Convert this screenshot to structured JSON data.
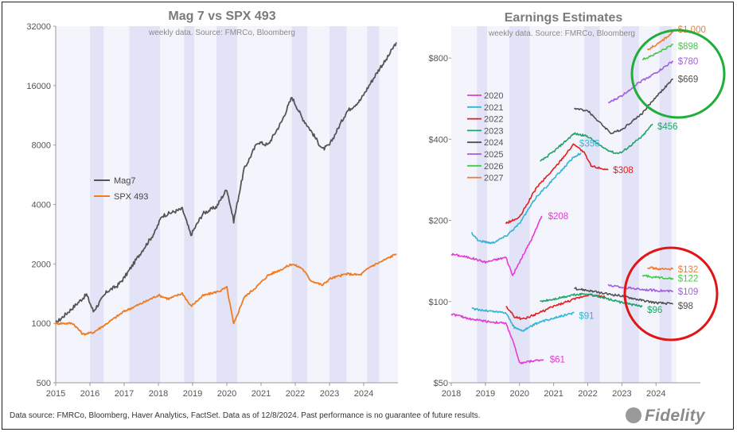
{
  "footnote": "Data source: FMRCo, Bloomberg, Haver Analytics, FactSet. Data as of 12/8/2024. Past performance is no guarantee of future results.",
  "logo_text": "Fidelity",
  "colors": {
    "mag7": "#555555",
    "spx493": "#ef7b22",
    "y2020": "#e53ad4",
    "y2021": "#2fb6d3",
    "y2022": "#e02020",
    "y2023": "#22a36a",
    "y2024": "#505050",
    "y2025": "#a35ee0",
    "y2026": "#45c94a",
    "y2027": "#f07a2e",
    "green_circle": "#1fae3a",
    "red_circle": "#e01515",
    "recession_band": "#e3e3f7"
  },
  "chart_data": [
    {
      "type": "line",
      "title": "Mag 7 vs SPX 493",
      "subtitle": "weekly data. Source: FMRCo, Bloomberg",
      "y_scale": "log",
      "ylim": [
        500,
        32000
      ],
      "y_ticks": [
        "32000",
        "16000",
        "8000",
        "4000",
        "2000",
        "1000",
        "500"
      ],
      "x_ticks": [
        "2015",
        "2016",
        "2017",
        "2018",
        "2019",
        "2020",
        "2021",
        "2022",
        "2023",
        "2024"
      ],
      "legend_position": "middle-left",
      "series": [
        {
          "name": "Mag7",
          "points": [
            [
              2015.0,
              1000
            ],
            [
              2015.5,
              1200
            ],
            [
              2015.9,
              1400
            ],
            [
              2016.1,
              1150
            ],
            [
              2016.5,
              1450
            ],
            [
              2016.8,
              1550
            ],
            [
              2017.0,
              1700
            ],
            [
              2017.5,
              2300
            ],
            [
              2017.9,
              2900
            ],
            [
              2018.1,
              3500
            ],
            [
              2018.7,
              3800
            ],
            [
              2018.95,
              2800
            ],
            [
              2019.3,
              3600
            ],
            [
              2019.7,
              3900
            ],
            [
              2020.0,
              4800
            ],
            [
              2020.2,
              3300
            ],
            [
              2020.5,
              6000
            ],
            [
              2020.9,
              8300
            ],
            [
              2021.2,
              8000
            ],
            [
              2021.6,
              10500
            ],
            [
              2021.9,
              14000
            ],
            [
              2022.2,
              11000
            ],
            [
              2022.45,
              9500
            ],
            [
              2022.8,
              7600
            ],
            [
              2023.0,
              8000
            ],
            [
              2023.5,
              11800
            ],
            [
              2023.9,
              13500
            ],
            [
              2024.2,
              16500
            ],
            [
              2024.5,
              20000
            ],
            [
              2024.65,
              21500
            ],
            [
              2024.95,
              26500
            ]
          ]
        },
        {
          "name": "SPX 493",
          "points": [
            [
              2015.0,
              1000
            ],
            [
              2015.5,
              1000
            ],
            [
              2015.8,
              880
            ],
            [
              2016.1,
              900
            ],
            [
              2016.5,
              1000
            ],
            [
              2017.0,
              1150
            ],
            [
              2017.5,
              1260
            ],
            [
              2018.0,
              1390
            ],
            [
              2018.3,
              1330
            ],
            [
              2018.7,
              1420
            ],
            [
              2018.95,
              1220
            ],
            [
              2019.3,
              1380
            ],
            [
              2019.8,
              1460
            ],
            [
              2020.0,
              1520
            ],
            [
              2020.2,
              990
            ],
            [
              2020.5,
              1350
            ],
            [
              2020.9,
              1550
            ],
            [
              2021.2,
              1750
            ],
            [
              2021.6,
              1880
            ],
            [
              2021.9,
              2000
            ],
            [
              2022.2,
              1900
            ],
            [
              2022.45,
              1650
            ],
            [
              2022.8,
              1560
            ],
            [
              2023.0,
              1680
            ],
            [
              2023.5,
              1780
            ],
            [
              2023.9,
              1760
            ],
            [
              2024.2,
              1940
            ],
            [
              2024.5,
              2050
            ],
            [
              2024.95,
              2250
            ]
          ]
        }
      ]
    },
    {
      "type": "line",
      "title": "Earnings Estimates",
      "subtitle": "weekly data. Source: FMRCo, Bloomberg",
      "y_scale": "log",
      "ylim": [
        50,
        1050
      ],
      "y_ticks": [
        "$800",
        "$400",
        "$200",
        "$100",
        "$50"
      ],
      "x_ticks": [
        "2018",
        "2019",
        "2020",
        "2021",
        "2022",
        "2023",
        "2024"
      ],
      "legend_position": "upper-left",
      "legend": [
        "2020",
        "2021",
        "2022",
        "2023",
        "2024",
        "2025",
        "2026",
        "2027"
      ],
      "series": [
        {
          "name": "2020",
          "kind": "mag7",
          "end_label": "$208",
          "points": [
            [
              2018.0,
              150
            ],
            [
              2018.6,
              145
            ],
            [
              2019.0,
              140
            ],
            [
              2019.6,
              146
            ],
            [
              2019.8,
              125
            ],
            [
              2020.0,
              140
            ],
            [
              2020.4,
              175
            ],
            [
              2020.65,
              208
            ]
          ]
        },
        {
          "name": "2021",
          "kind": "mag7",
          "end_label": "$356",
          "points": [
            [
              2018.6,
              180
            ],
            [
              2018.8,
              168
            ],
            [
              2019.2,
              165
            ],
            [
              2019.6,
              175
            ],
            [
              2020.0,
              195
            ],
            [
              2020.5,
              245
            ],
            [
              2021.0,
              285
            ],
            [
              2021.6,
              345
            ],
            [
              2021.8,
              356
            ]
          ]
        },
        {
          "name": "2022",
          "kind": "mag7",
          "end_label": "$308",
          "points": [
            [
              2019.6,
              195
            ],
            [
              2020.0,
              205
            ],
            [
              2020.5,
              265
            ],
            [
              2021.0,
              310
            ],
            [
              2021.6,
              385
            ],
            [
              2021.9,
              355
            ],
            [
              2022.1,
              318
            ],
            [
              2022.6,
              308
            ]
          ]
        },
        {
          "name": "2023",
          "kind": "mag7",
          "end_label": "$456",
          "points": [
            [
              2020.6,
              330
            ],
            [
              2021.0,
              360
            ],
            [
              2021.6,
              420
            ],
            [
              2022.0,
              410
            ],
            [
              2022.4,
              375
            ],
            [
              2022.8,
              355
            ],
            [
              2023.0,
              358
            ],
            [
              2023.6,
              410
            ],
            [
              2023.9,
              456
            ]
          ]
        },
        {
          "name": "2024",
          "kind": "mag7",
          "end_label": "$669",
          "points": [
            [
              2021.6,
              520
            ],
            [
              2022.0,
              510
            ],
            [
              2022.4,
              455
            ],
            [
              2022.7,
              420
            ],
            [
              2023.0,
              435
            ],
            [
              2023.6,
              500
            ],
            [
              2024.0,
              575
            ],
            [
              2024.5,
              669
            ]
          ]
        },
        {
          "name": "2025",
          "kind": "mag7",
          "end_label": "$780",
          "points": [
            [
              2022.6,
              545
            ],
            [
              2023.0,
              580
            ],
            [
              2023.5,
              650
            ],
            [
              2024.0,
              705
            ],
            [
              2024.5,
              780
            ]
          ]
        },
        {
          "name": "2026",
          "kind": "mag7",
          "end_label": "$898",
          "points": [
            [
              2023.6,
              790
            ],
            [
              2024.0,
              830
            ],
            [
              2024.5,
              898
            ]
          ]
        },
        {
          "name": "2027",
          "kind": "mag7",
          "end_label": "$1,000",
          "points": [
            [
              2023.75,
              860
            ],
            [
              2024.1,
              910
            ],
            [
              2024.5,
              1000
            ]
          ]
        },
        {
          "name": "2020",
          "kind": "spx493",
          "end_label": "$61",
          "points": [
            [
              2018.0,
              90
            ],
            [
              2018.6,
              86
            ],
            [
              2019.2,
              84
            ],
            [
              2019.6,
              83
            ],
            [
              2019.8,
              72
            ],
            [
              2020.0,
              59
            ],
            [
              2020.3,
              60
            ],
            [
              2020.7,
              61
            ]
          ]
        },
        {
          "name": "2021",
          "kind": "spx493",
          "end_label": "$91",
          "points": [
            [
              2018.6,
              94
            ],
            [
              2019.2,
              92
            ],
            [
              2019.6,
              91
            ],
            [
              2019.85,
              80
            ],
            [
              2020.1,
              78
            ],
            [
              2020.5,
              83
            ],
            [
              2021.0,
              87
            ],
            [
              2021.6,
              91
            ]
          ]
        },
        {
          "name": "2022",
          "kind": "spx493",
          "end_label": "",
          "points": [
            [
              2019.6,
              96
            ],
            [
              2019.85,
              88
            ],
            [
              2020.1,
              86
            ],
            [
              2020.5,
              90
            ],
            [
              2021.0,
              96
            ],
            [
              2021.5,
              101
            ],
            [
              2022.0,
              106
            ],
            [
              2022.5,
              104
            ]
          ]
        },
        {
          "name": "2023",
          "kind": "spx493",
          "end_label": "$96",
          "points": [
            [
              2020.6,
              100
            ],
            [
              2021.0,
              102
            ],
            [
              2021.6,
              106
            ],
            [
              2022.0,
              107
            ],
            [
              2022.5,
              103
            ],
            [
              2023.0,
              99
            ],
            [
              2023.6,
              96
            ]
          ]
        },
        {
          "name": "2024",
          "kind": "spx493",
          "end_label": "$98",
          "points": [
            [
              2021.6,
              112
            ],
            [
              2022.0,
              110
            ],
            [
              2022.5,
              107
            ],
            [
              2023.0,
              105
            ],
            [
              2023.6,
              101
            ],
            [
              2024.0,
              99
            ],
            [
              2024.5,
              98
            ]
          ]
        },
        {
          "name": "2025",
          "kind": "spx493",
          "end_label": "$109",
          "points": [
            [
              2022.6,
              115
            ],
            [
              2023.0,
              113
            ],
            [
              2023.6,
              111
            ],
            [
              2024.0,
              110
            ],
            [
              2024.5,
              109
            ]
          ]
        },
        {
          "name": "2026",
          "kind": "spx493",
          "end_label": "$122",
          "points": [
            [
              2023.6,
              125
            ],
            [
              2024.0,
              123
            ],
            [
              2024.5,
              122
            ]
          ]
        },
        {
          "name": "2027",
          "kind": "spx493",
          "end_label": "$132",
          "points": [
            [
              2023.75,
              134
            ],
            [
              2024.1,
              132
            ],
            [
              2024.5,
              132
            ]
          ]
        }
      ]
    }
  ]
}
